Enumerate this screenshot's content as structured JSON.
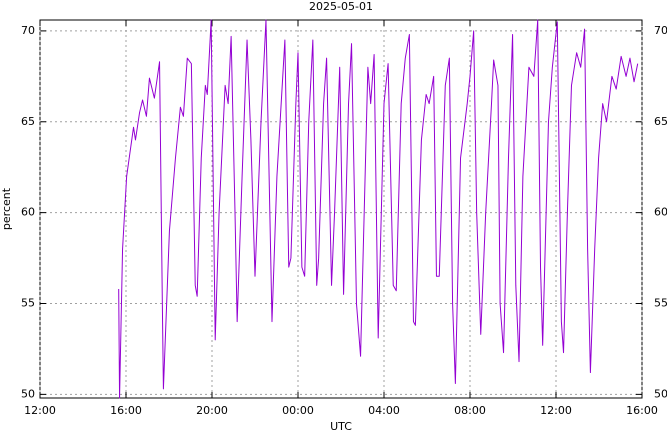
{
  "chart_data": {
    "type": "line",
    "title": "2025-05-01",
    "xlabel": "UTC",
    "ylabel": "percent",
    "color": "#9400d3",
    "grid": true,
    "right_axis_labels": true,
    "xlim": [
      12,
      40
    ],
    "ylim": [
      49.8,
      70.6
    ],
    "xticks": [
      {
        "value": 12,
        "label": "12:00"
      },
      {
        "value": 16,
        "label": "16:00"
      },
      {
        "value": 20,
        "label": "20:00"
      },
      {
        "value": 24,
        "label": "00:00"
      },
      {
        "value": 28,
        "label": "04:00"
      },
      {
        "value": 32,
        "label": "08:00"
      },
      {
        "value": 36,
        "label": "12:00"
      },
      {
        "value": 40,
        "label": "16:00"
      }
    ],
    "yticks": [
      50,
      55,
      60,
      65,
      70
    ],
    "x": [
      15.66,
      15.7,
      15.84,
      16.03,
      16.35,
      16.44,
      16.63,
      16.77,
      16.95,
      17.09,
      17.32,
      17.56,
      17.69,
      17.74,
      18.02,
      18.3,
      18.53,
      18.67,
      18.85,
      19.04,
      19.22,
      19.31,
      19.5,
      19.69,
      19.78,
      19.96,
      20.15,
      20.33,
      20.61,
      20.75,
      20.89,
      21.07,
      21.17,
      21.4,
      21.63,
      21.81,
      22.0,
      22.28,
      22.51,
      22.69,
      22.79,
      23.02,
      23.39,
      23.57,
      23.67,
      23.9,
      24.0,
      24.18,
      24.31,
      24.5,
      24.69,
      24.87,
      24.96,
      25.19,
      25.33,
      25.56,
      25.7,
      25.94,
      26.12,
      26.35,
      26.49,
      26.72,
      26.91,
      27.25,
      27.38,
      27.54,
      27.73,
      28.0,
      28.19,
      28.43,
      28.57,
      28.8,
      28.99,
      29.18,
      29.37,
      29.46,
      29.74,
      29.96,
      30.1,
      30.31,
      30.44,
      30.57,
      30.85,
      31.04,
      31.19,
      31.32,
      31.56,
      31.87,
      32.0,
      32.17,
      32.31,
      32.5,
      32.73,
      33.0,
      33.1,
      33.3,
      33.4,
      33.56,
      33.79,
      33.98,
      34.13,
      34.28,
      34.46,
      34.74,
      34.97,
      35.15,
      35.28,
      35.38,
      35.65,
      35.83,
      36.06,
      36.25,
      36.35,
      36.53,
      36.72,
      36.96,
      37.15,
      37.33,
      37.47,
      37.6,
      37.8,
      37.98,
      38.17,
      38.35,
      38.6,
      38.8,
      39.03,
      39.26,
      39.44,
      39.63,
      39.8
    ],
    "values": [
      55.8,
      49.8,
      58,
      62,
      64.7,
      64,
      65.5,
      66.2,
      65.3,
      67.4,
      66.3,
      68.3,
      55,
      50.3,
      59,
      63,
      65.8,
      65.3,
      68.5,
      68.2,
      56,
      55.4,
      63,
      67,
      66.5,
      70.6,
      53,
      60,
      67,
      66,
      69.7,
      60,
      54,
      62,
      69.5,
      64,
      56.5,
      65,
      70.6,
      60,
      54,
      62,
      69.5,
      57,
      57.5,
      66,
      68.8,
      57,
      56.5,
      65,
      69.5,
      56,
      57.5,
      66,
      68.5,
      56,
      60,
      68,
      55.5,
      66,
      69.3,
      55,
      52.1,
      68,
      66,
      68.7,
      53.1,
      66,
      68.2,
      56,
      55.7,
      66,
      68.5,
      69.8,
      54,
      53.8,
      64,
      66.5,
      66,
      67.5,
      56.5,
      56.5,
      67,
      68.5,
      55,
      50.6,
      63,
      66,
      67.5,
      70,
      60,
      53.3,
      60,
      66,
      68.4,
      67,
      55,
      52.3,
      63,
      69.8,
      56,
      51.8,
      62,
      68,
      67.5,
      70.6,
      57,
      52.7,
      65,
      68,
      70.5,
      54,
      52.3,
      60,
      67,
      68.8,
      68,
      70.1,
      58,
      51.2,
      58,
      63,
      66,
      65,
      67.5,
      66.8,
      68.6,
      67.5,
      68.5,
      67.2,
      68.2
    ]
  }
}
